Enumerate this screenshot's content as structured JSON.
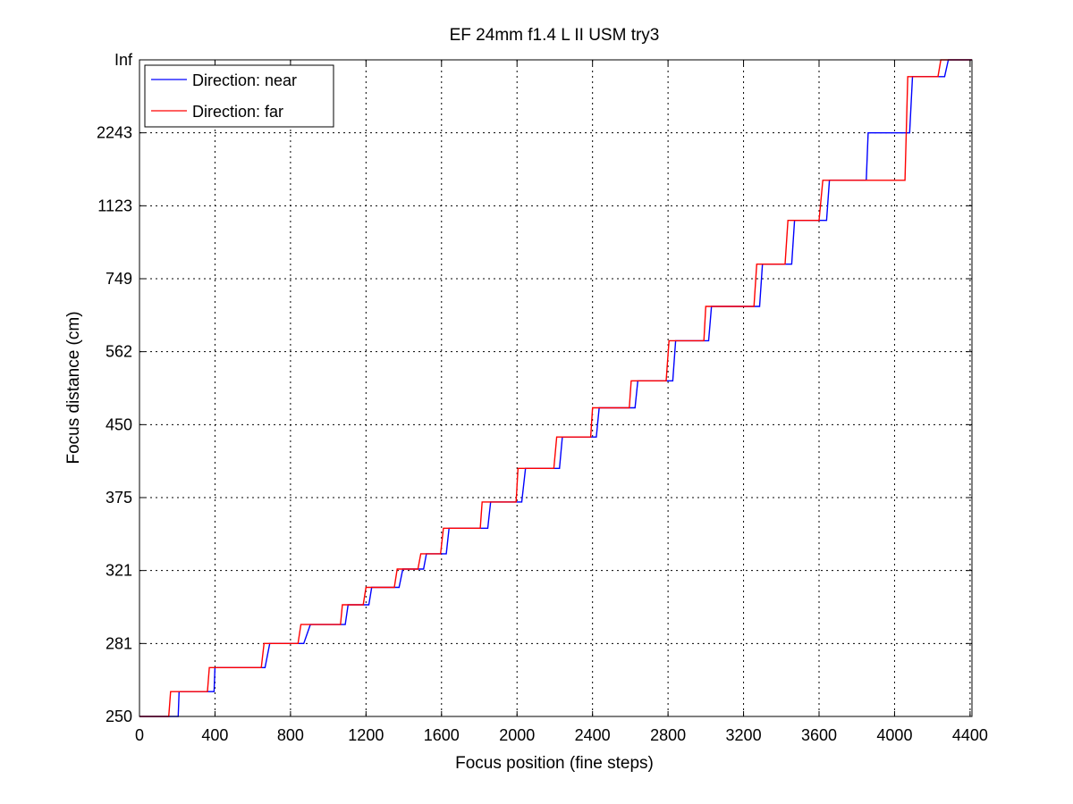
{
  "chart_data": {
    "type": "line",
    "title": "EF 24mm f1.4 L II USM try3",
    "xlabel": "Focus position (fine steps)",
    "ylabel": "Focus distance (cm)",
    "xlim": [
      0,
      4410
    ],
    "ylim": [
      0,
      9
    ],
    "x_ticks": [
      0,
      400,
      800,
      1200,
      1600,
      2000,
      2400,
      2800,
      3200,
      3600,
      4000,
      4400
    ],
    "y_ticks": [
      {
        "value": 0,
        "label": "250"
      },
      {
        "value": 1,
        "label": "281"
      },
      {
        "value": 2,
        "label": "321"
      },
      {
        "value": 3,
        "label": "375"
      },
      {
        "value": 4,
        "label": "450"
      },
      {
        "value": 5,
        "label": "562"
      },
      {
        "value": 6,
        "label": "749"
      },
      {
        "value": 7,
        "label": "1123"
      },
      {
        "value": 8,
        "label": "2243"
      },
      {
        "value": 9,
        "label": "Inf"
      }
    ],
    "y_scale": "index of reciprocal focus distance (tick labels in cm)",
    "grid": true,
    "legend": "top-left",
    "series": [
      {
        "name": "Direction: near",
        "color": "#0000ff",
        "points": [
          [
            0,
            0
          ],
          [
            205,
            0
          ],
          [
            210,
            0.34
          ],
          [
            395,
            0.34
          ],
          [
            400,
            0.67
          ],
          [
            665,
            0.67
          ],
          [
            690,
            1.0
          ],
          [
            870,
            1.0
          ],
          [
            905,
            1.26
          ],
          [
            1090,
            1.26
          ],
          [
            1105,
            1.53
          ],
          [
            1215,
            1.53
          ],
          [
            1230,
            1.77
          ],
          [
            1375,
            1.77
          ],
          [
            1395,
            2.02
          ],
          [
            1505,
            2.02
          ],
          [
            1520,
            2.23
          ],
          [
            1625,
            2.23
          ],
          [
            1640,
            2.58
          ],
          [
            1845,
            2.58
          ],
          [
            1860,
            2.94
          ],
          [
            2025,
            2.94
          ],
          [
            2045,
            3.4
          ],
          [
            2225,
            3.4
          ],
          [
            2240,
            3.83
          ],
          [
            2420,
            3.83
          ],
          [
            2435,
            4.23
          ],
          [
            2625,
            4.23
          ],
          [
            2640,
            4.6
          ],
          [
            2825,
            4.6
          ],
          [
            2840,
            5.15
          ],
          [
            3015,
            5.15
          ],
          [
            3030,
            5.62
          ],
          [
            3285,
            5.62
          ],
          [
            3300,
            6.2
          ],
          [
            3455,
            6.2
          ],
          [
            3470,
            6.8
          ],
          [
            3640,
            6.8
          ],
          [
            3655,
            7.35
          ],
          [
            3850,
            7.35
          ],
          [
            3860,
            8.0
          ],
          [
            4080,
            8.0
          ],
          [
            4095,
            8.77
          ],
          [
            4265,
            8.77
          ],
          [
            4285,
            9.0
          ],
          [
            4410,
            9.0
          ]
        ]
      },
      {
        "name": "Direction: far",
        "color": "#ff0000",
        "points": [
          [
            0,
            0
          ],
          [
            155,
            0
          ],
          [
            165,
            0.34
          ],
          [
            360,
            0.34
          ],
          [
            370,
            0.67
          ],
          [
            645,
            0.67
          ],
          [
            660,
            1.0
          ],
          [
            840,
            1.0
          ],
          [
            855,
            1.26
          ],
          [
            1065,
            1.26
          ],
          [
            1075,
            1.53
          ],
          [
            1185,
            1.53
          ],
          [
            1200,
            1.77
          ],
          [
            1350,
            1.77
          ],
          [
            1365,
            2.02
          ],
          [
            1475,
            2.02
          ],
          [
            1490,
            2.23
          ],
          [
            1595,
            2.23
          ],
          [
            1610,
            2.58
          ],
          [
            1805,
            2.58
          ],
          [
            1815,
            2.94
          ],
          [
            1995,
            2.94
          ],
          [
            2005,
            3.4
          ],
          [
            2195,
            3.4
          ],
          [
            2210,
            3.83
          ],
          [
            2390,
            3.83
          ],
          [
            2400,
            4.23
          ],
          [
            2595,
            4.23
          ],
          [
            2605,
            4.6
          ],
          [
            2790,
            4.6
          ],
          [
            2805,
            5.15
          ],
          [
            2990,
            5.15
          ],
          [
            3000,
            5.62
          ],
          [
            3255,
            5.62
          ],
          [
            3270,
            6.2
          ],
          [
            3420,
            6.2
          ],
          [
            3435,
            6.8
          ],
          [
            3600,
            6.8
          ],
          [
            3620,
            7.35
          ],
          [
            4055,
            7.35
          ],
          [
            4070,
            8.77
          ],
          [
            4230,
            8.77
          ],
          [
            4245,
            9.0
          ],
          [
            4410,
            9.0
          ]
        ]
      }
    ]
  }
}
